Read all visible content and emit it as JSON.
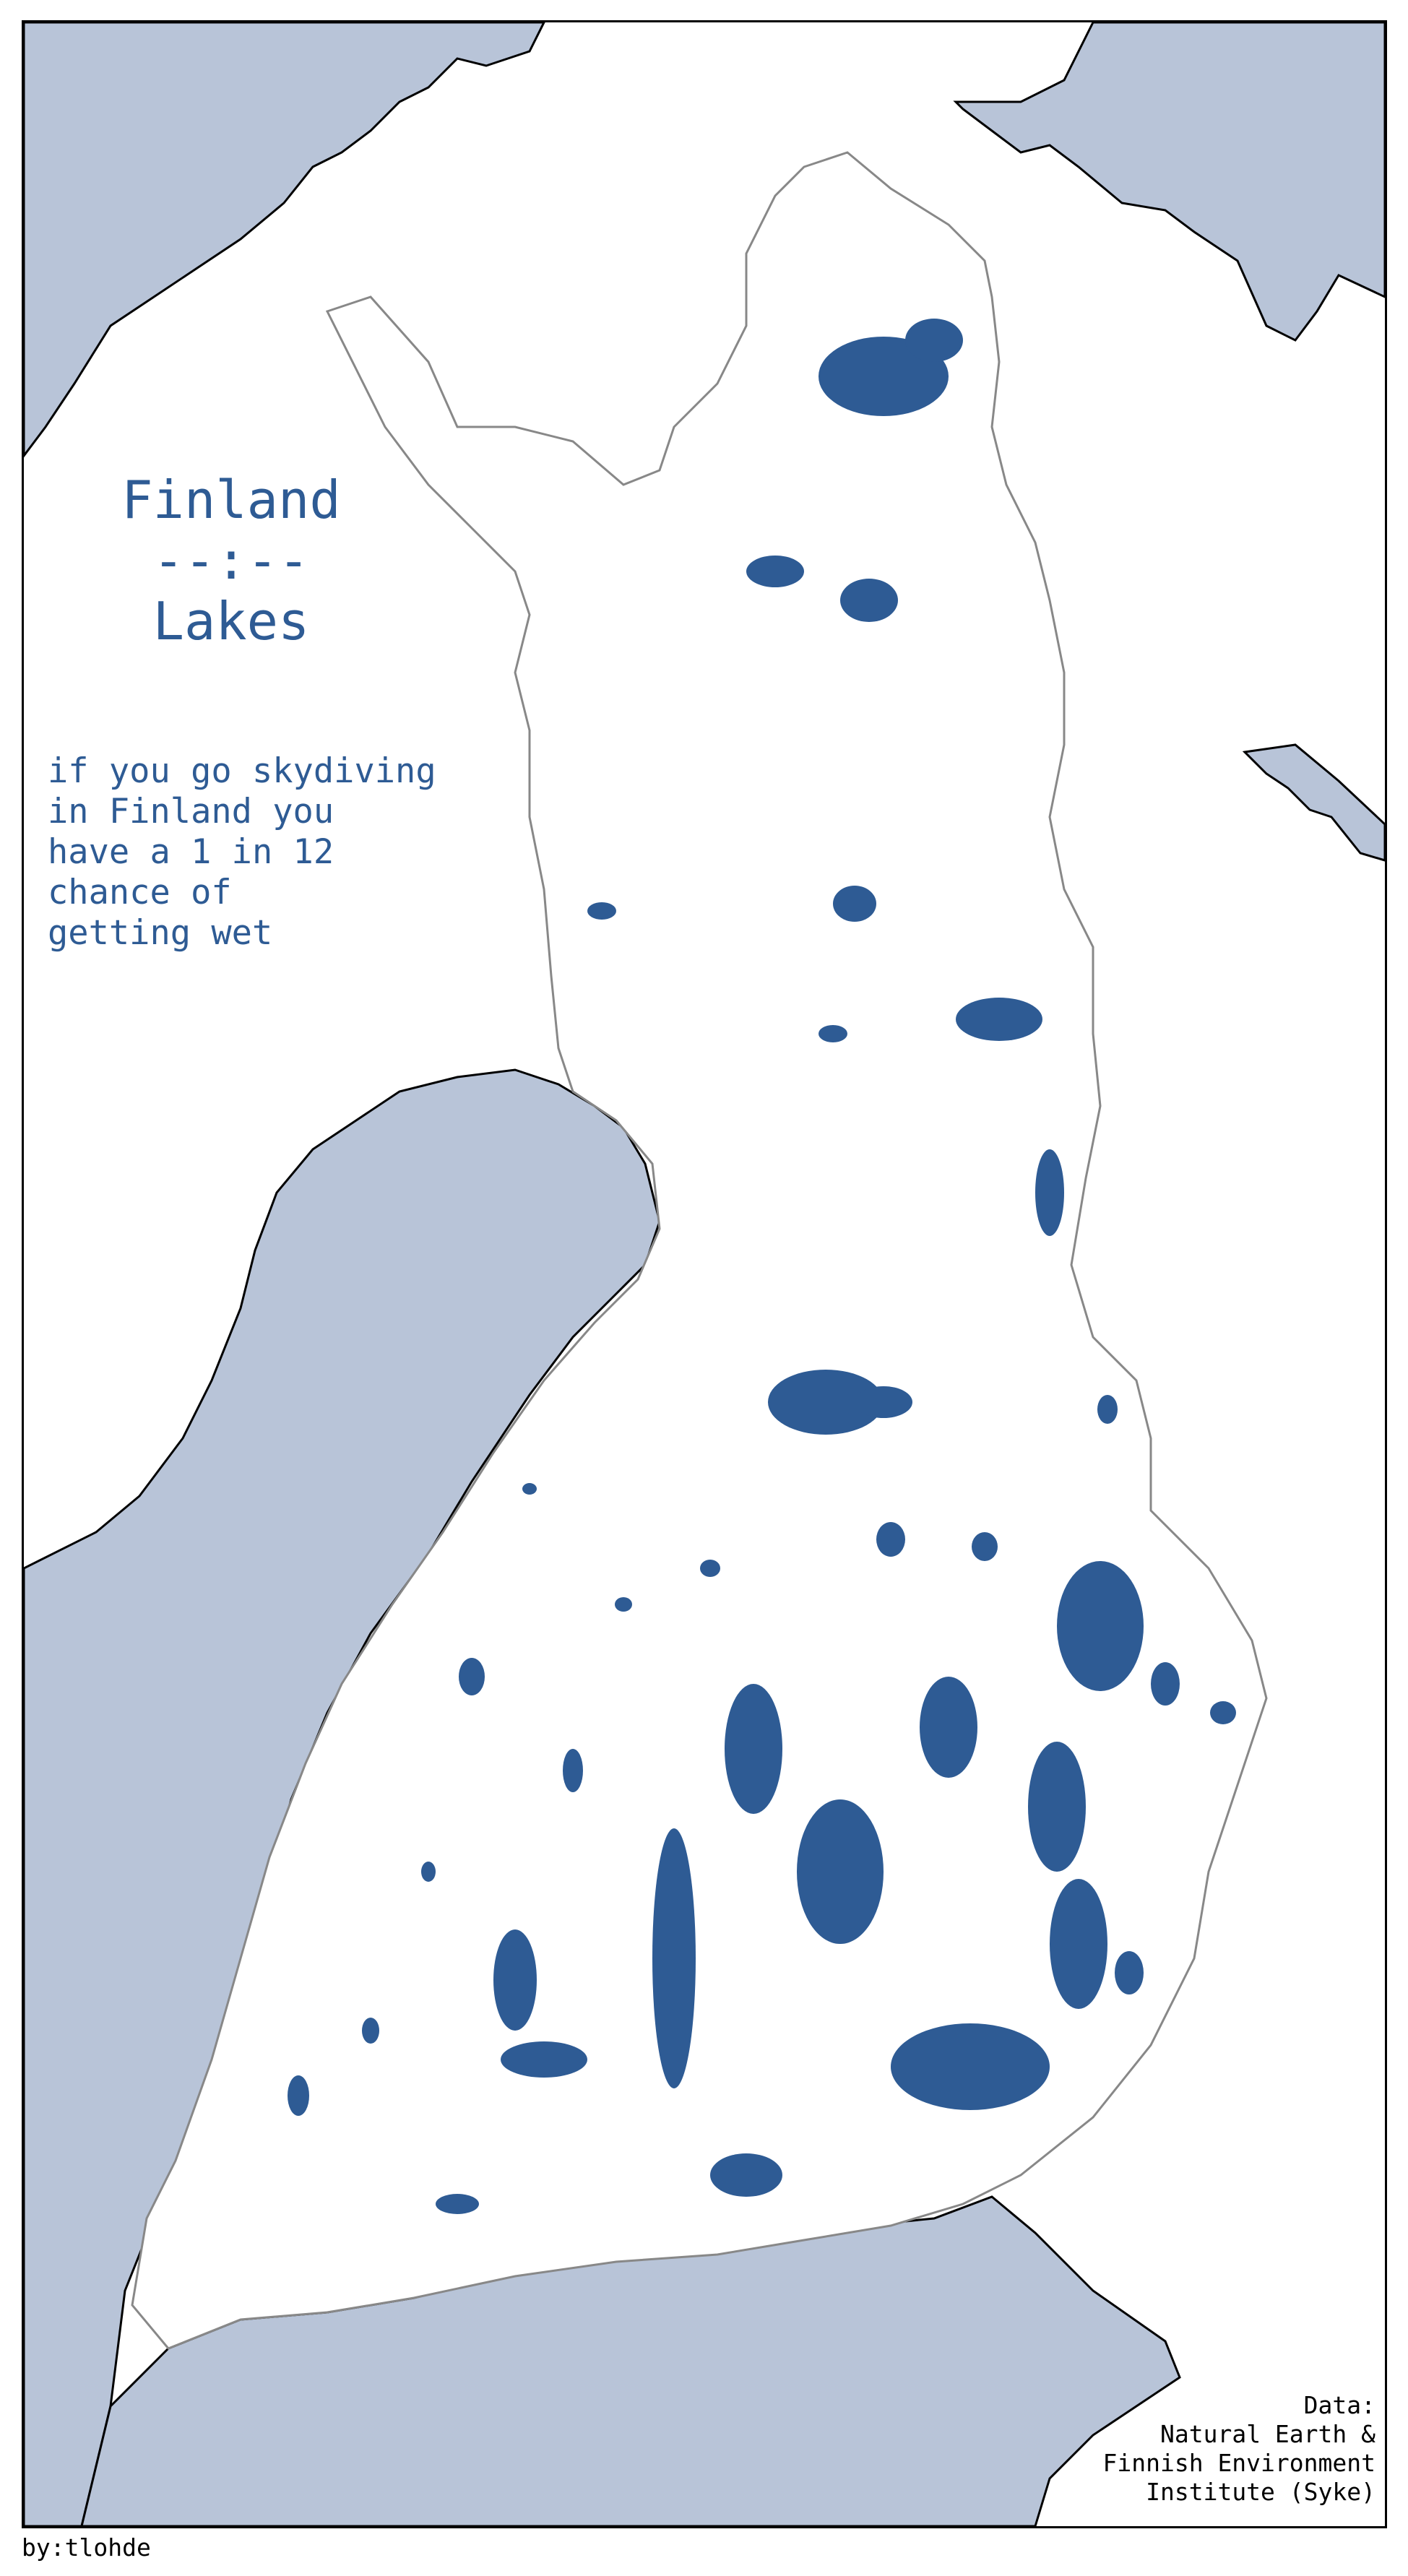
{
  "title": {
    "line1": "Finland",
    "line2": "--:--",
    "line3": "Lakes"
  },
  "subtitle": {
    "lines": [
      "if you go skydiving",
      "in Finland you",
      "have a 1 in 12",
      "chance of",
      "getting wet"
    ]
  },
  "credit": {
    "lines": [
      "Data:",
      "Natural Earth &",
      "Finnish Environment",
      "Institute (Syke)"
    ]
  },
  "byline": "by:tlohde",
  "colors": {
    "sea": "#b8c4d8",
    "land": "#ffffff",
    "lakes": "#2e5b94",
    "border": "#888888",
    "coastline": "#000000",
    "text": "#2e5b94"
  }
}
